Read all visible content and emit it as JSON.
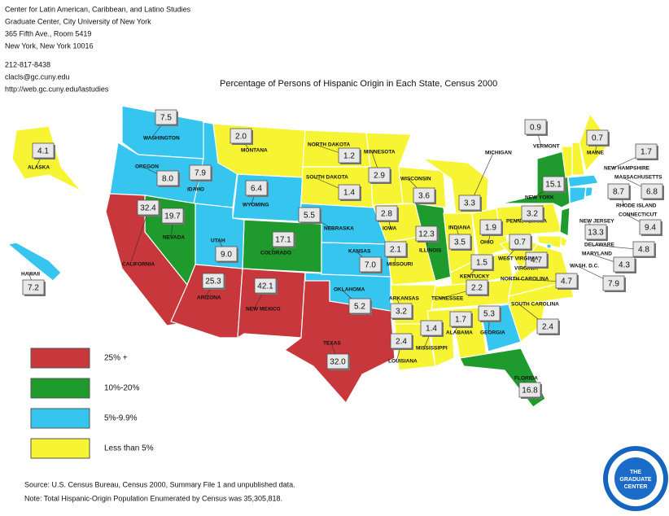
{
  "header": {
    "lines": [
      "Center for Latin American, Caribbean, and Latino Studies",
      "Graduate Center, City University of New York",
      "365 Fifth Ave., Room 5419",
      "New York, New York 10016",
      "212-817-8438",
      "clacls@gc.cuny.edu",
      "http://web.gc.cuny.edu/lastudies"
    ]
  },
  "title": "Percentage of Persons of Hispanic Origin in Each State, Census 2000",
  "states": [
    {
      "name": "WASHINGTON",
      "value": "7.5",
      "color": "#35c5ef"
    },
    {
      "name": "OREGON",
      "value": "8.0",
      "color": "#35c5ef"
    },
    {
      "name": "IDAHO",
      "value": "7.9",
      "color": "#35c5ef"
    },
    {
      "name": "MONTANA",
      "value": "2.0",
      "color": "#f7f533"
    },
    {
      "name": "WYOMING",
      "value": "6.4",
      "color": "#35c5ef"
    },
    {
      "name": "NORTH DAKOTA",
      "value": "1.2",
      "color": "#f7f533"
    },
    {
      "name": "SOUTH DAKOTA",
      "value": "1.4",
      "color": "#f7f533"
    },
    {
      "name": "NEBRASKA",
      "value": "5.5",
      "color": "#35c5ef"
    },
    {
      "name": "COLORADO",
      "value": "17.1",
      "color": "#1f9a2c"
    },
    {
      "name": "UTAH",
      "value": "9.0",
      "color": "#35c5ef"
    },
    {
      "name": "NEVADA",
      "value": "19.7",
      "color": "#1f9a2c"
    },
    {
      "name": "CALIFORNIA",
      "value": "32.4",
      "color": "#c8373c"
    },
    {
      "name": "ARIZONA",
      "value": "25.3",
      "color": "#c8373c"
    },
    {
      "name": "NEW MEXICO",
      "value": "42.1",
      "color": "#c8373c"
    },
    {
      "name": "TEXAS",
      "value": "32.0",
      "color": "#c8373c"
    },
    {
      "name": "OKLAHOMA",
      "value": "5.2",
      "color": "#35c5ef"
    },
    {
      "name": "KANSAS",
      "value": "7.0",
      "color": "#35c5ef"
    },
    {
      "name": "MINNESOTA",
      "value": "2.9",
      "color": "#f7f533"
    },
    {
      "name": "IOWA",
      "value": "2.8",
      "color": "#f7f533"
    },
    {
      "name": "MISSOURI",
      "value": "2.1",
      "color": "#f7f533"
    },
    {
      "name": "ARKANSAS",
      "value": "3.2",
      "color": "#f7f533"
    },
    {
      "name": "LOUISIANA",
      "value": "2.4",
      "color": "#f7f533"
    },
    {
      "name": "WISCONSIN",
      "value": "3.6",
      "color": "#f7f533"
    },
    {
      "name": "ILLINOIS",
      "value": "12.3",
      "color": "#1f9a2c"
    },
    {
      "name": "MICHIGAN",
      "value": "3.3",
      "color": "#f7f533"
    },
    {
      "name": "INDIANA",
      "value": "3.5",
      "color": "#f7f533"
    },
    {
      "name": "OHIO",
      "value": "1.9",
      "color": "#f7f533"
    },
    {
      "name": "KENTUCKY",
      "value": "1.5",
      "color": "#f7f533"
    },
    {
      "name": "TENNESSEE",
      "value": "2.2",
      "color": "#f7f533"
    },
    {
      "name": "MISSISSIPPI",
      "value": "1.4",
      "color": "#f7f533"
    },
    {
      "name": "ALABAMA",
      "value": "1.7",
      "color": "#f7f533"
    },
    {
      "name": "GEORGIA",
      "value": "5.3",
      "color": "#35c5ef"
    },
    {
      "name": "FLORIDA",
      "value": "16.8",
      "color": "#1f9a2c"
    },
    {
      "name": "SOUTH CAROLINA",
      "value": "2.4",
      "color": "#f7f533"
    },
    {
      "name": "NORTH CAROLINA",
      "value": "4.7",
      "color": "#f7f533"
    },
    {
      "name": "VIRGINIA",
      "value": "4.7",
      "color": "#f7f533"
    },
    {
      "name": "WEST VIRGINIA",
      "value": "0.7",
      "color": "#f7f533"
    },
    {
      "name": "PENNSYLVANIA",
      "value": "3.2",
      "color": "#f7f533"
    },
    {
      "name": "NEW YORK",
      "value": "15.1",
      "color": "#1f9a2c"
    },
    {
      "name": "VERMONT",
      "value": "0.9",
      "color": "#f7f533"
    },
    {
      "name": "NEW HAMPSHIRE",
      "value": "1.7",
      "color": "#f7f533"
    },
    {
      "name": "MAINE",
      "value": "0.7",
      "color": "#f7f533"
    },
    {
      "name": "MASSACHUSETTS",
      "value": "6.8",
      "color": "#35c5ef"
    },
    {
      "name": "CONNECTICUT",
      "value": "9.4",
      "color": "#35c5ef"
    },
    {
      "name": "RHODE ISLAND",
      "value": "8.7",
      "color": "#35c5ef"
    },
    {
      "name": "NEW JERSEY",
      "value": "13.3",
      "color": "#1f9a2c"
    },
    {
      "name": "DELAWARE",
      "value": "4.8",
      "color": "#f7f533"
    },
    {
      "name": "MARYLAND",
      "value": "4.3",
      "color": "#f7f533"
    },
    {
      "name": "WASH. D.C.",
      "value": "7.9",
      "color": "#35c5ef"
    },
    {
      "name": "ALASKA",
      "value": "4.1",
      "color": "#f7f533"
    },
    {
      "name": "HAWAII",
      "value": "7.2",
      "color": "#35c5ef"
    }
  ],
  "legend": [
    {
      "label": "25% +",
      "color": "#c8373c"
    },
    {
      "label": "10%-20%",
      "color": "#1f9a2c"
    },
    {
      "label": "5%-9.9%",
      "color": "#35c5ef"
    },
    {
      "label": "Less than 5%",
      "color": "#f7f533"
    }
  ],
  "notes": [
    "Source:  U.S. Census Bureau, Census 2000, Summary File 1 and unpublished data.",
    "Note: Total Hispanic-Origin Population Enumerated by Census was 35,305,818."
  ],
  "logo": {
    "lines": [
      "THE",
      "GRADUATE",
      "CENTER"
    ],
    "ring": "THE CITY UNIVERSITY OF NEW YORK"
  }
}
